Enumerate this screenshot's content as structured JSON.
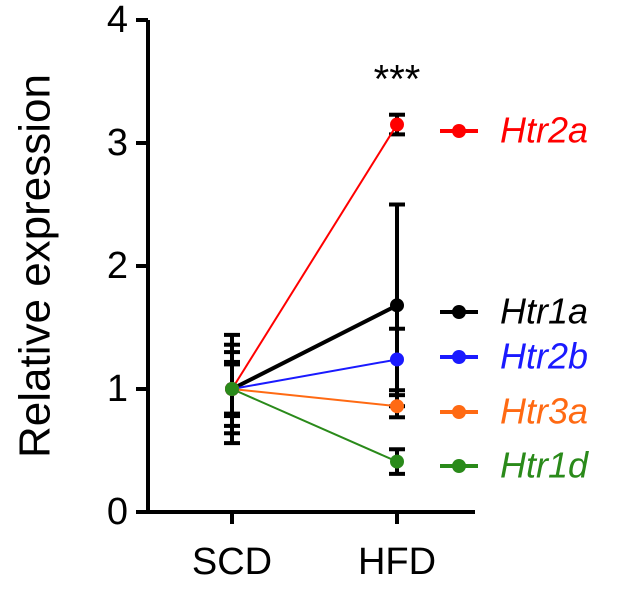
{
  "chart_data": {
    "type": "line",
    "ylabel": "Relative expression",
    "categories": [
      "SCD",
      "HFD"
    ],
    "annotation": "***",
    "ylim": [
      0,
      4
    ],
    "yticks": [
      0,
      1,
      2,
      3,
      4
    ],
    "series": [
      {
        "name": "Htr2a",
        "color": "#ff0000",
        "values": [
          1,
          3.15
        ],
        "errors": [
          0.36,
          0.08
        ]
      },
      {
        "name": "Htr1a",
        "color": "#000000",
        "values": [
          1,
          1.68
        ],
        "errors": [
          0.44,
          0.82
        ]
      },
      {
        "name": "Htr2b",
        "color": "#1a1aff",
        "values": [
          1,
          1.24
        ],
        "errors": [
          0.22,
          0.25
        ]
      },
      {
        "name": "Htr3a",
        "color": "#ff6a13",
        "values": [
          1,
          0.86
        ],
        "errors": [
          0.3,
          0.09
        ]
      },
      {
        "name": "Htr1d",
        "color": "#2a8a1a",
        "values": [
          1,
          0.41
        ],
        "errors": [
          0.2,
          0.1
        ]
      }
    ]
  }
}
